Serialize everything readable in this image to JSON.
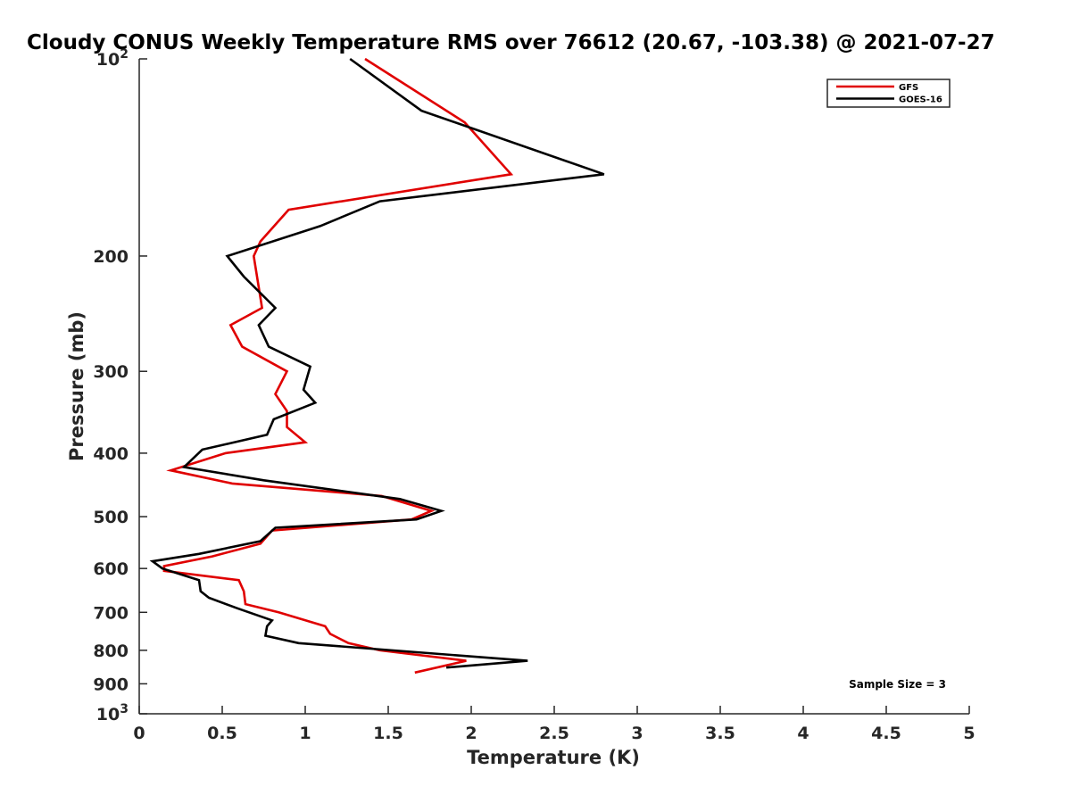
{
  "chart_data": {
    "type": "line",
    "title": "Cloudy CONUS Weekly Temperature RMS over 76612 (20.67, -103.38) @ 2021-07-27",
    "xlabel": "Temperature (K)",
    "ylabel": "Pressure (mb)",
    "xlim": [
      0,
      5
    ],
    "ylim": [
      100,
      1000
    ],
    "yscale": "log",
    "y_reversed": true,
    "x_ticks": [
      0,
      0.5,
      1,
      1.5,
      2,
      2.5,
      3,
      3.5,
      4,
      4.5,
      5
    ],
    "x_tick_labels": [
      "0",
      "0.5",
      "1",
      "1.5",
      "2",
      "2.5",
      "3",
      "3.5",
      "4",
      "4.5",
      "5"
    ],
    "y_ticks": [
      100,
      200,
      300,
      400,
      500,
      600,
      700,
      800,
      900,
      1000
    ],
    "y_tick_labels": [
      {
        "base": "10",
        "exp": "2"
      },
      {
        "base": "200",
        "exp": ""
      },
      {
        "base": "300",
        "exp": ""
      },
      {
        "base": "400",
        "exp": ""
      },
      {
        "base": "500",
        "exp": ""
      },
      {
        "base": "600",
        "exp": ""
      },
      {
        "base": "700",
        "exp": ""
      },
      {
        "base": "800",
        "exp": ""
      },
      {
        "base": "900",
        "exp": ""
      },
      {
        "base": "10",
        "exp": "3"
      }
    ],
    "grid": false,
    "legend_position": "top-right",
    "series": [
      {
        "name": "GFS",
        "color": "#e00000",
        "points": [
          [
            1.36,
            100
          ],
          [
            1.96,
            125
          ],
          [
            2.24,
            150
          ],
          [
            0.9,
            170
          ],
          [
            0.73,
            190
          ],
          [
            0.69,
            200
          ],
          [
            0.74,
            240
          ],
          [
            0.55,
            255
          ],
          [
            0.62,
            275
          ],
          [
            0.89,
            300
          ],
          [
            0.82,
            325
          ],
          [
            0.89,
            345
          ],
          [
            0.89,
            365
          ],
          [
            1.0,
            385
          ],
          [
            0.52,
            400
          ],
          [
            0.19,
            425
          ],
          [
            0.56,
            445
          ],
          [
            1.46,
            465
          ],
          [
            1.76,
            490
          ],
          [
            1.64,
            505
          ],
          [
            0.8,
            525
          ],
          [
            0.73,
            550
          ],
          [
            0.44,
            575
          ],
          [
            0.15,
            595
          ],
          [
            0.15,
            605
          ],
          [
            0.6,
            625
          ],
          [
            0.63,
            650
          ],
          [
            0.64,
            680
          ],
          [
            0.84,
            700
          ],
          [
            1.12,
            735
          ],
          [
            1.15,
            755
          ],
          [
            1.26,
            780
          ],
          [
            1.45,
            800
          ],
          [
            1.97,
            830
          ],
          [
            1.66,
            865
          ]
        ]
      },
      {
        "name": "GOES-16",
        "color": "#000000",
        "points": [
          [
            1.27,
            100
          ],
          [
            1.7,
            120
          ],
          [
            2.8,
            150
          ],
          [
            1.45,
            165
          ],
          [
            1.09,
            180
          ],
          [
            0.53,
            200
          ],
          [
            0.63,
            215
          ],
          [
            0.82,
            240
          ],
          [
            0.72,
            255
          ],
          [
            0.78,
            275
          ],
          [
            1.03,
            295
          ],
          [
            0.99,
            320
          ],
          [
            1.06,
            335
          ],
          [
            0.81,
            355
          ],
          [
            0.77,
            375
          ],
          [
            0.38,
            395
          ],
          [
            0.27,
            420
          ],
          [
            0.75,
            440
          ],
          [
            1.57,
            470
          ],
          [
            1.82,
            490
          ],
          [
            1.67,
            505
          ],
          [
            0.82,
            520
          ],
          [
            0.73,
            545
          ],
          [
            0.36,
            570
          ],
          [
            0.08,
            585
          ],
          [
            0.14,
            600
          ],
          [
            0.36,
            625
          ],
          [
            0.37,
            650
          ],
          [
            0.42,
            665
          ],
          [
            0.59,
            690
          ],
          [
            0.8,
            720
          ],
          [
            0.77,
            735
          ],
          [
            0.76,
            760
          ],
          [
            0.96,
            780
          ],
          [
            2.34,
            830
          ],
          [
            1.85,
            850
          ]
        ]
      }
    ],
    "annotation": "Sample Size = 3"
  }
}
